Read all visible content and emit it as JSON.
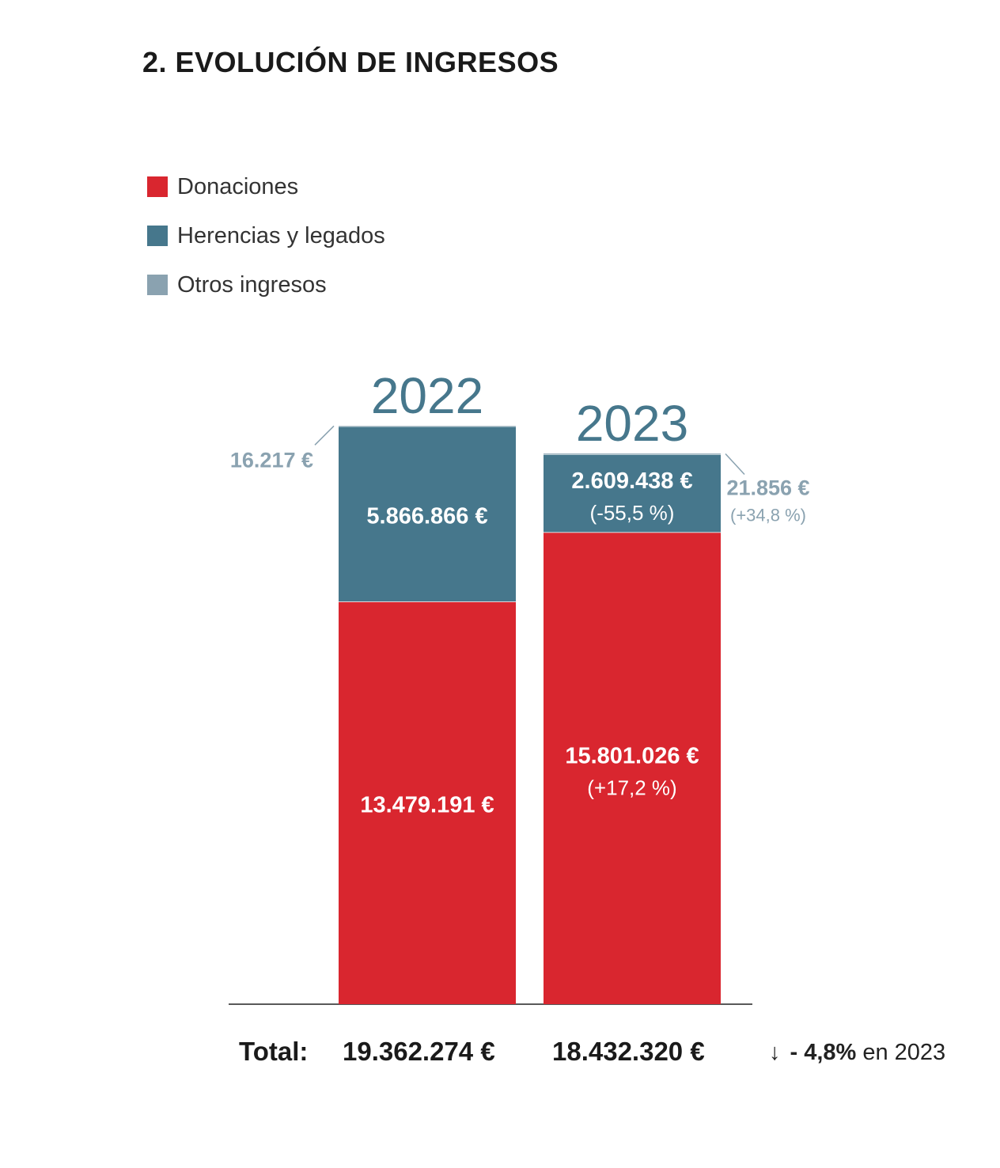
{
  "title": "2. EVOLUCIÓN DE INGRESOS",
  "legend": [
    {
      "label": "Donaciones",
      "color": "#d9262f"
    },
    {
      "label": "Herencias y legados",
      "color": "#46778c"
    },
    {
      "label": "Otros ingresos",
      "color": "#8aa2b0"
    }
  ],
  "chart_data": {
    "type": "bar",
    "stacked": true,
    "categories": [
      "2022",
      "2023"
    ],
    "series": [
      {
        "name": "Donaciones",
        "values": [
          13479191,
          15801026
        ],
        "labels": [
          "13.479.191 €",
          "15.801.026 €"
        ],
        "changes": [
          "",
          "(+17,2 %)"
        ],
        "color": "#d9262f"
      },
      {
        "name": "Herencias y legados",
        "values": [
          5866866,
          2609438
        ],
        "labels": [
          "5.866.866 €",
          "2.609.438 €"
        ],
        "changes": [
          "",
          "(-55,5 %)"
        ],
        "color": "#46778c"
      },
      {
        "name": "Otros ingresos",
        "values": [
          16217,
          21856
        ],
        "labels": [
          "16.217 €",
          "21.856 €"
        ],
        "changes": [
          "",
          "(+34,8 %)"
        ],
        "color": "#8aa2b0"
      }
    ],
    "ylim": [
      0,
      19362274
    ],
    "legend_position": "top-left"
  },
  "totals": {
    "label": "Total:",
    "values": [
      "19.362.274 €",
      "18.432.320 €"
    ],
    "change_arrow": "↓",
    "change_pct": "- 4,8%",
    "change_suffix": "en 2023"
  }
}
